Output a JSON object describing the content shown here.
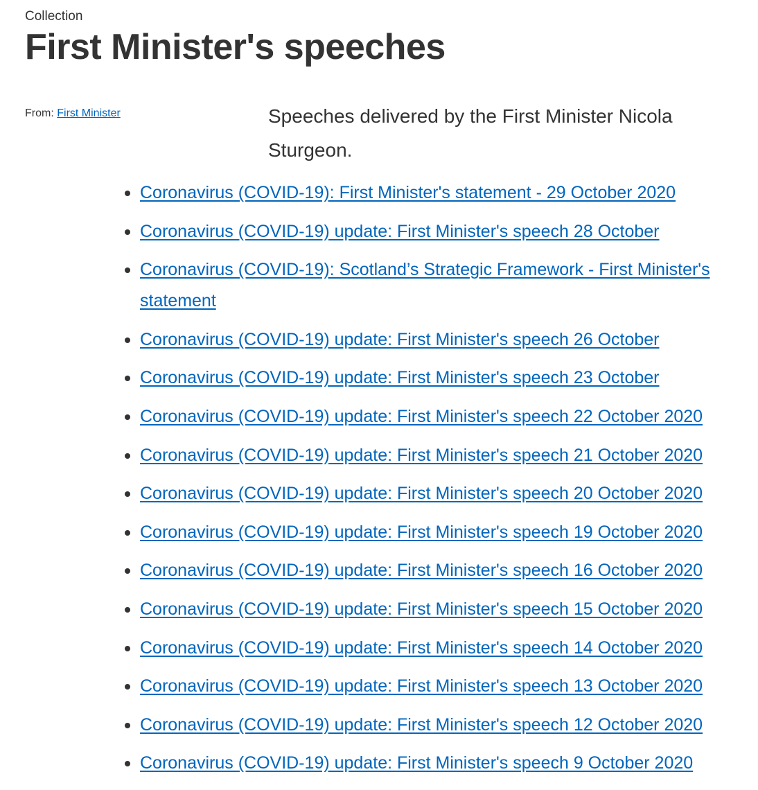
{
  "header": {
    "collection_label": "Collection",
    "title": "First Minister's speeches"
  },
  "meta": {
    "from_label": "From:",
    "from_link": "First Minister"
  },
  "summary": "Speeches delivered by the First Minister Nicola Sturgeon.",
  "speeches": [
    "Coronavirus (COVID-19): First Minister's statement - 29 October 2020",
    "Coronavirus (COVID-19) update: First Minister's speech 28 October",
    "Coronavirus (COVID-19): Scotland’s Strategic Framework - First Minister's statement",
    "Coronavirus (COVID-19) update: First Minister's speech 26 October",
    "Coronavirus (COVID-19) update: First Minister's speech 23 October",
    "Coronavirus (COVID-19) update: First Minister's speech 22 October 2020",
    "Coronavirus (COVID-19) update: First Minister's speech 21 October 2020",
    "Coronavirus (COVID-19) update: First Minister's speech 20 October 2020",
    "Coronavirus (COVID-19) update: First Minister's speech 19 October 2020",
    "Coronavirus (COVID-19) update: First Minister's speech 16 October 2020",
    "Coronavirus (COVID-19) update: First Minister's speech 15 October 2020",
    "Coronavirus (COVID-19) update: First Minister's speech 14 October 2020",
    "Coronavirus (COVID-19) update: First Minister's speech 13 October 2020",
    "Coronavirus (COVID-19) update: First Minister's speech 12 October 2020",
    "Coronavirus (COVID-19) update: First Minister's speech 9 October 2020"
  ],
  "colors": {
    "text": "#333333",
    "link": "#0065bd",
    "background": "#ffffff"
  }
}
